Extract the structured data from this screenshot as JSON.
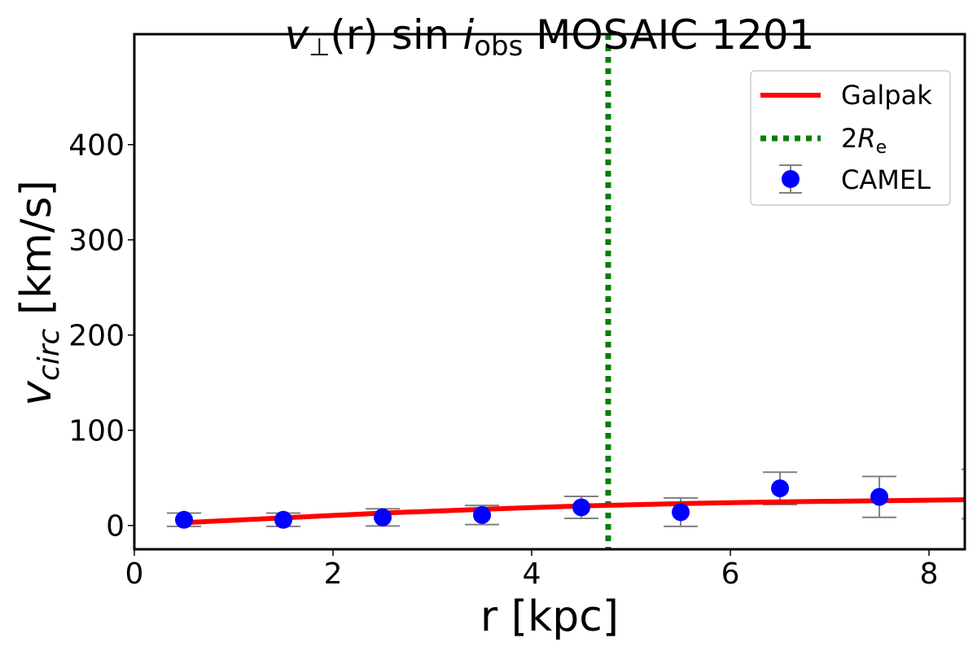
{
  "chart_data": {
    "type": "scatter",
    "title": {
      "v": "v",
      "perp": "⊥",
      "r": "(r)",
      "sin": " sin ",
      "i": "i",
      "obs": "obs",
      "rest": " MOSAIC 1201"
    },
    "xlabel": "r [kpc]",
    "ylabel": {
      "main": "v",
      "sub": "circ",
      "unit": " [km/s]"
    },
    "xlim": [
      0,
      8.36
    ],
    "ylim": [
      -25,
      516
    ],
    "xticks": [
      0,
      2,
      4,
      6,
      8
    ],
    "yticks": [
      0,
      100,
      200,
      300,
      400
    ],
    "grid": false,
    "legend_position": "top-right",
    "series": [
      {
        "name": "Galpak",
        "type": "line",
        "color": "#ff0000",
        "x": [
          0.5,
          1.5,
          2.5,
          3.5,
          4.5,
          5.5,
          6.5,
          7.5,
          8.36
        ],
        "y": [
          3,
          8,
          13,
          17,
          20.5,
          23,
          24.8,
          26,
          27
        ]
      },
      {
        "name": "CAMEL",
        "type": "errorbar",
        "color": "#0000ff",
        "errcolor": "#808080",
        "x": [
          0.5,
          1.5,
          2.5,
          3.5,
          4.5,
          5.5,
          6.5,
          7.5,
          8.5
        ],
        "y": [
          6,
          6,
          8.5,
          11,
          19,
          14,
          39,
          30,
          33
        ],
        "yerr": [
          7,
          7,
          9,
          10,
          11.5,
          15,
          17,
          21.5,
          26
        ]
      }
    ],
    "vline": {
      "x": 4.77,
      "color": "#008000",
      "label_main": "2",
      "label_R": "R",
      "label_sub": "e"
    }
  }
}
